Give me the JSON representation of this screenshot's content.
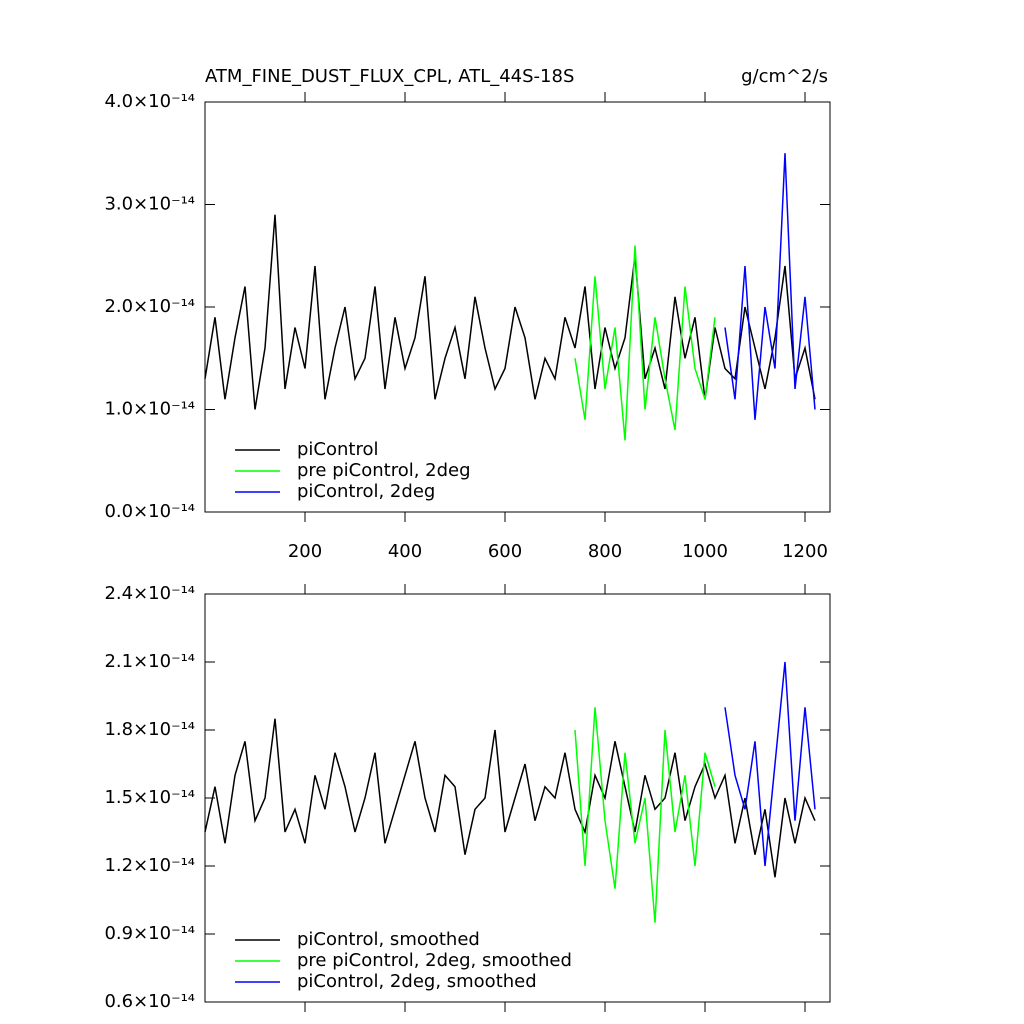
{
  "chart_data": [
    {
      "type": "line",
      "title": "ATM_FINE_DUST_FLUX_CPL, ATL_44S-18S",
      "units": "g/cm^2/s",
      "x": [
        0,
        20,
        40,
        60,
        80,
        100,
        120,
        140,
        160,
        180,
        200,
        220,
        240,
        260,
        280,
        300,
        320,
        340,
        360,
        380,
        400,
        420,
        440,
        460,
        480,
        500,
        520,
        540,
        560,
        580,
        600,
        620,
        640,
        660,
        680,
        700,
        720,
        740,
        760,
        780,
        800,
        820,
        840,
        860,
        880,
        900,
        920,
        940,
        960,
        980,
        1000,
        1020,
        1040,
        1060,
        1080,
        1100,
        1120,
        1140,
        1160,
        1180,
        1200,
        1220
      ],
      "xlim": [
        0,
        1250
      ],
      "xticks": [
        200,
        400,
        600,
        800,
        1000,
        1200
      ],
      "xtick_labels": true,
      "ylim": [
        0,
        4e-14
      ],
      "yticks": [
        {
          "value": 0,
          "label": "0.0×10⁻¹⁴"
        },
        {
          "value": 1e-14,
          "label": "1.0×10⁻¹⁴"
        },
        {
          "value": 2e-14,
          "label": "2.0×10⁻¹⁴"
        },
        {
          "value": 3e-14,
          "label": "3.0×10⁻¹⁴"
        },
        {
          "value": 4e-14,
          "label": "4.0×10⁻¹⁴"
        }
      ],
      "series": [
        {
          "name": "piControl",
          "color": "#000000",
          "values": [
            1.3e-14,
            1.9e-14,
            1.1e-14,
            1.7e-14,
            2.2e-14,
            1e-14,
            1.6e-14,
            2.9e-14,
            1.2e-14,
            1.8e-14,
            1.4e-14,
            2.4e-14,
            1.1e-14,
            1.6e-14,
            2e-14,
            1.3e-14,
            1.5e-14,
            2.2e-14,
            1.2e-14,
            1.9e-14,
            1.4e-14,
            1.7e-14,
            2.3e-14,
            1.1e-14,
            1.5e-14,
            1.8e-14,
            1.3e-14,
            2.1e-14,
            1.6e-14,
            1.2e-14,
            1.4e-14,
            2e-14,
            1.7e-14,
            1.1e-14,
            1.5e-14,
            1.3e-14,
            1.9e-14,
            1.6e-14,
            2.2e-14,
            1.2e-14,
            1.8e-14,
            1.4e-14,
            1.7e-14,
            2.5e-14,
            1.3e-14,
            1.6e-14,
            1.2e-14,
            2.1e-14,
            1.5e-14,
            1.9e-14,
            1.1e-14,
            1.8e-14,
            1.4e-14,
            1.3e-14,
            2e-14,
            1.6e-14,
            1.2e-14,
            1.7e-14,
            2.4e-14,
            1.3e-14,
            1.6e-14,
            1.1e-14
          ]
        },
        {
          "name": "pre piControl, 2deg",
          "color": "#00ff00",
          "values": [
            null,
            null,
            null,
            null,
            null,
            null,
            null,
            null,
            null,
            null,
            null,
            null,
            null,
            null,
            null,
            null,
            null,
            null,
            null,
            null,
            null,
            null,
            null,
            null,
            null,
            null,
            null,
            null,
            null,
            null,
            null,
            null,
            null,
            null,
            null,
            null,
            null,
            1.5e-14,
            9e-15,
            2.3e-14,
            1.2e-14,
            1.8e-14,
            7e-15,
            2.6e-14,
            1e-14,
            1.9e-14,
            1.3e-14,
            8e-15,
            2.2e-14,
            1.4e-14,
            1.1e-14,
            1.9e-14,
            null,
            null,
            null,
            null,
            null,
            null,
            null,
            null,
            null,
            null
          ]
        },
        {
          "name": "piControl, 2deg",
          "color": "#0000ff",
          "values": [
            null,
            null,
            null,
            null,
            null,
            null,
            null,
            null,
            null,
            null,
            null,
            null,
            null,
            null,
            null,
            null,
            null,
            null,
            null,
            null,
            null,
            null,
            null,
            null,
            null,
            null,
            null,
            null,
            null,
            null,
            null,
            null,
            null,
            null,
            null,
            null,
            null,
            null,
            null,
            null,
            null,
            null,
            null,
            null,
            null,
            null,
            null,
            null,
            null,
            null,
            null,
            null,
            1.8e-14,
            1.1e-14,
            2.4e-14,
            9e-15,
            2e-14,
            1.4e-14,
            3.5e-14,
            1.2e-14,
            2.1e-14,
            1e-14
          ]
        }
      ]
    },
    {
      "type": "line",
      "x": [
        0,
        20,
        40,
        60,
        80,
        100,
        120,
        140,
        160,
        180,
        200,
        220,
        240,
        260,
        280,
        300,
        320,
        340,
        360,
        380,
        400,
        420,
        440,
        460,
        480,
        500,
        520,
        540,
        560,
        580,
        600,
        620,
        640,
        660,
        680,
        700,
        720,
        740,
        760,
        780,
        800,
        820,
        840,
        860,
        880,
        900,
        920,
        940,
        960,
        980,
        1000,
        1020,
        1040,
        1060,
        1080,
        1100,
        1120,
        1140,
        1160,
        1180,
        1200,
        1220
      ],
      "xlim": [
        0,
        1250
      ],
      "xticks": [
        200,
        400,
        600,
        800,
        1000,
        1200
      ],
      "xtick_labels": false,
      "ylim": [
        6e-15,
        2.4e-14
      ],
      "yticks": [
        {
          "value": 6e-15,
          "label": "0.6×10⁻¹⁴"
        },
        {
          "value": 9e-15,
          "label": "0.9×10⁻¹⁴"
        },
        {
          "value": 1.2e-14,
          "label": "1.2×10⁻¹⁴"
        },
        {
          "value": 1.5e-14,
          "label": "1.5×10⁻¹⁴"
        },
        {
          "value": 1.8e-14,
          "label": "1.8×10⁻¹⁴"
        },
        {
          "value": 2.1e-14,
          "label": "2.1×10⁻¹⁴"
        },
        {
          "value": 2.4e-14,
          "label": "2.4×10⁻¹⁴"
        }
      ],
      "series": [
        {
          "name": "piControl, smoothed",
          "color": "#000000",
          "values": [
            1.35e-14,
            1.55e-14,
            1.3e-14,
            1.6e-14,
            1.75e-14,
            1.4e-14,
            1.5e-14,
            1.85e-14,
            1.35e-14,
            1.45e-14,
            1.3e-14,
            1.6e-14,
            1.45e-14,
            1.7e-14,
            1.55e-14,
            1.35e-14,
            1.5e-14,
            1.7e-14,
            1.3e-14,
            1.45e-14,
            1.6e-14,
            1.75e-14,
            1.5e-14,
            1.35e-14,
            1.6e-14,
            1.55e-14,
            1.25e-14,
            1.45e-14,
            1.5e-14,
            1.8e-14,
            1.35e-14,
            1.5e-14,
            1.65e-14,
            1.4e-14,
            1.55e-14,
            1.5e-14,
            1.7e-14,
            1.45e-14,
            1.35e-14,
            1.6e-14,
            1.5e-14,
            1.75e-14,
            1.55e-14,
            1.35e-14,
            1.6e-14,
            1.45e-14,
            1.5e-14,
            1.7e-14,
            1.4e-14,
            1.55e-14,
            1.65e-14,
            1.5e-14,
            1.6e-14,
            1.3e-14,
            1.5e-14,
            1.25e-14,
            1.45e-14,
            1.15e-14,
            1.5e-14,
            1.3e-14,
            1.5e-14,
            1.4e-14
          ]
        },
        {
          "name": "pre piControl, 2deg, smoothed",
          "color": "#00ff00",
          "values": [
            null,
            null,
            null,
            null,
            null,
            null,
            null,
            null,
            null,
            null,
            null,
            null,
            null,
            null,
            null,
            null,
            null,
            null,
            null,
            null,
            null,
            null,
            null,
            null,
            null,
            null,
            null,
            null,
            null,
            null,
            null,
            null,
            null,
            null,
            null,
            null,
            null,
            1.8e-14,
            1.2e-14,
            1.9e-14,
            1.4e-14,
            1.1e-14,
            1.7e-14,
            1.3e-14,
            1.5e-14,
            9.5e-15,
            1.8e-14,
            1.35e-14,
            1.6e-14,
            1.2e-14,
            1.7e-14,
            1.55e-14,
            null,
            null,
            null,
            null,
            null,
            null,
            null,
            null,
            null,
            null
          ]
        },
        {
          "name": "piControl, 2deg, smoothed",
          "color": "#0000ff",
          "values": [
            null,
            null,
            null,
            null,
            null,
            null,
            null,
            null,
            null,
            null,
            null,
            null,
            null,
            null,
            null,
            null,
            null,
            null,
            null,
            null,
            null,
            null,
            null,
            null,
            null,
            null,
            null,
            null,
            null,
            null,
            null,
            null,
            null,
            null,
            null,
            null,
            null,
            null,
            null,
            null,
            null,
            null,
            null,
            null,
            null,
            null,
            null,
            null,
            null,
            null,
            null,
            null,
            1.9e-14,
            1.6e-14,
            1.45e-14,
            1.75e-14,
            1.2e-14,
            1.65e-14,
            2.1e-14,
            1.4e-14,
            1.9e-14,
            1.45e-14
          ]
        }
      ]
    }
  ]
}
